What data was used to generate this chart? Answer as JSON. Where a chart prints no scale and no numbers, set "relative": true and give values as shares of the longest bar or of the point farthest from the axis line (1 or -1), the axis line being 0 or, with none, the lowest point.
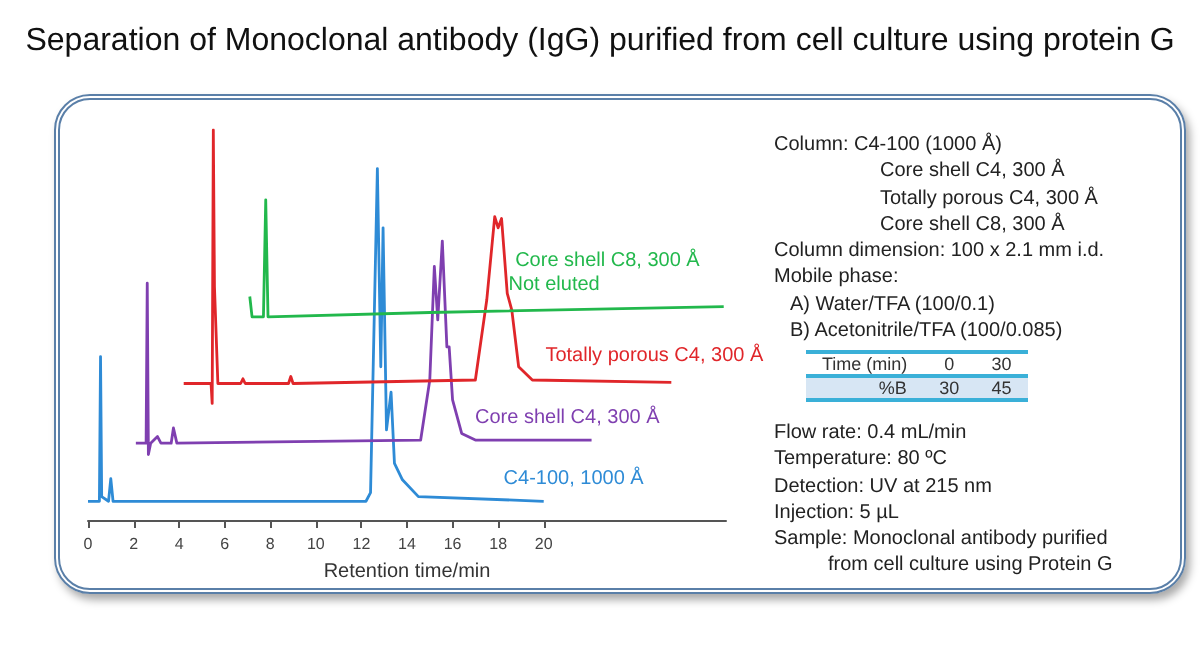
{
  "chart_data": [
    {
      "type": "line",
      "title": "Separation of Monoclonal antibody (IgG) purified from cell culture using protein G",
      "xlabel": "Retention time/min",
      "relative": true,
      "xlim": [
        0,
        28
      ],
      "xticks": [
        0,
        2,
        4,
        6,
        8,
        10,
        12,
        14,
        16,
        18,
        20
      ],
      "grid": false,
      "legend": false,
      "marker": "none",
      "line_style": "solid",
      "annotations": [
        "Not eluted"
      ],
      "series": [
        {
          "name": "C4-100, 1000 Å",
          "color": "#2e8bd6",
          "x": [
            0,
            0.5,
            0.55,
            0.6,
            0.9,
            1.0,
            1.1,
            12.2,
            12.4,
            12.7,
            12.85,
            12.95,
            13.1,
            13.3,
            13.45,
            13.8,
            14.5,
            20
          ],
          "values": [
            0.048,
            0.048,
            0.419,
            0.06,
            0.048,
            0.106,
            0.048,
            0.048,
            0.07,
            0.901,
            0.393,
            0.749,
            0.231,
            0.328,
            0.145,
            0.103,
            0.06,
            0.048
          ]
        },
        {
          "name": "Core shell C4, 300 Å",
          "color": "#7f3fb0",
          "x": [
            2.1,
            2.55,
            2.6,
            2.65,
            2.75,
            3.05,
            3.2,
            3.65,
            3.75,
            3.9,
            14.6,
            15.0,
            15.2,
            15.35,
            15.55,
            15.75,
            15.85,
            16.0,
            16.4,
            17.0,
            22.1
          ],
          "values": [
            0.197,
            0.197,
            0.607,
            0.168,
            0.197,
            0.214,
            0.197,
            0.197,
            0.236,
            0.197,
            0.205,
            0.359,
            0.65,
            0.513,
            0.715,
            0.444,
            0.444,
            0.308,
            0.222,
            0.205,
            0.205
          ]
        },
        {
          "name": "Totally porous C4, 300 Å",
          "color": "#e0262a",
          "x": [
            4.2,
            5.4,
            5.45,
            5.5,
            5.55,
            5.7,
            6.7,
            6.8,
            6.9,
            8.8,
            8.9,
            9.0,
            17.0,
            17.5,
            17.85,
            18.0,
            18.15,
            18.4,
            18.6,
            18.9,
            19.5,
            25.6
          ],
          "values": [
            0.35,
            0.35,
            0.299,
            1.0,
            0.598,
            0.35,
            0.35,
            0.362,
            0.35,
            0.35,
            0.368,
            0.35,
            0.359,
            0.564,
            0.778,
            0.749,
            0.773,
            0.581,
            0.538,
            0.393,
            0.359,
            0.353
          ]
        },
        {
          "name": "Core shell C8, 300 Å",
          "color": "#22b84c",
          "x": [
            7.1,
            7.2,
            7.7,
            7.8,
            7.9,
            15,
            27.9
          ],
          "values": [
            0.573,
            0.521,
            0.521,
            0.821,
            0.521,
            0.532,
            0.547
          ]
        }
      ]
    },
    {
      "type": "other",
      "annotations": [
        "Column: C4-100 (1000 Å)",
        "Core shell C4, 300 Å",
        "Totally porous C4, 300 Å",
        "Core shell C8, 300 Å",
        "Column dimension: 100 x 2.1 mm i.d.",
        "Mobile phase:",
        "A) Water/TFA (100/0.1)",
        "B) Acetonitrile/TFA (100/0.085)"
      ]
    },
    {
      "type": "other",
      "y_categories": [
        "Time (min)",
        "%B"
      ],
      "cell_labels": [
        [
          "0",
          "30"
        ],
        [
          "30",
          "45"
        ]
      ]
    },
    {
      "type": "other",
      "annotations": [
        "Flow rate: 0.4 mL/min",
        "Temperature: 80 ºC",
        "Detection: UV at 215 nm",
        "Injection: 5 µL",
        "Sample: Monoclonal antibody purified",
        "from cell culture using Protein G"
      ]
    }
  ]
}
